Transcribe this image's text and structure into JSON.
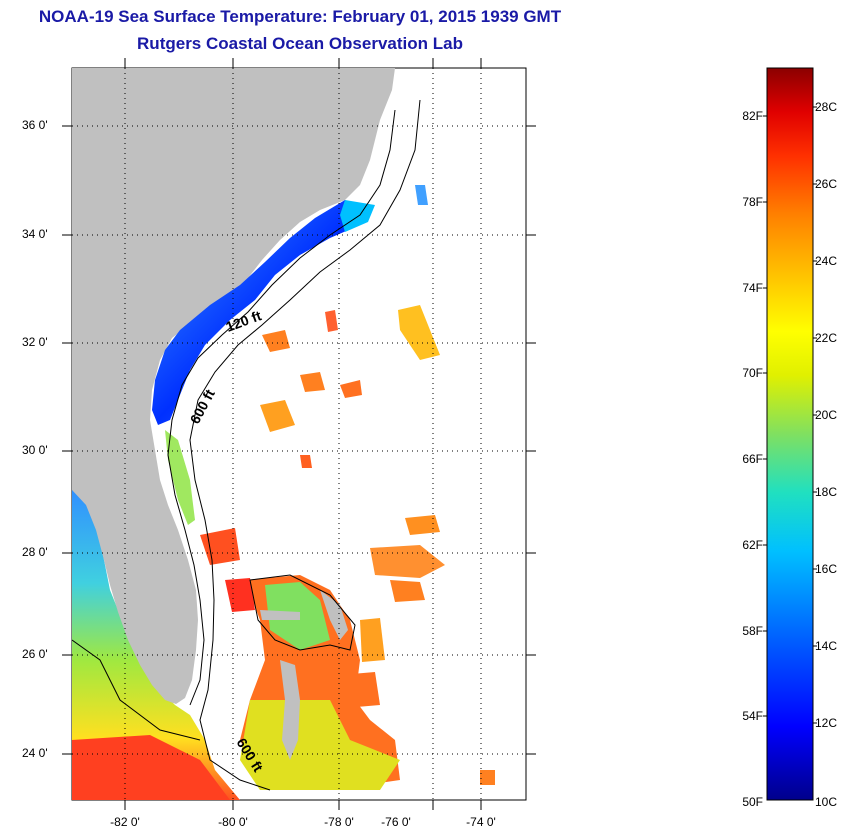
{
  "header": {
    "title": "NOAA-19 Sea Surface Temperature:  February 01, 2015 1939 GMT",
    "subtitle": "Rutgers Coastal Ocean Observation Lab"
  },
  "map": {
    "lat_labels": [
      "36 0'",
      "34 0'",
      "32 0'",
      "30 0'",
      "28 0'",
      "26 0'",
      "24 0'"
    ],
    "lon_labels": [
      "-82 0'",
      "-80 0'",
      "-78 0'",
      "-76 0'",
      "-74 0'"
    ],
    "lat_range": [
      23,
      37.2
    ],
    "lon_range": [
      -83,
      -72.5
    ],
    "grid": true,
    "depth_contours": [
      "120 ft",
      "600 ft",
      "600 ft"
    ],
    "land_color": "#c0c0c0",
    "ocean_background": "#ffffff"
  },
  "colorbar": {
    "fahrenheit_labels": [
      "82F",
      "78F",
      "74F",
      "70F",
      "66F",
      "62F",
      "58F",
      "54F",
      "50F"
    ],
    "celsius_labels": [
      "28C",
      "26C",
      "24C",
      "22C",
      "20C",
      "18C",
      "16C",
      "14C",
      "12C",
      "10C"
    ],
    "range_celsius": [
      10,
      29
    ],
    "colors": [
      "#00008b",
      "#0000ff",
      "#0060ff",
      "#00c0ff",
      "#20e0d0",
      "#60e080",
      "#c0f020",
      "#ffff00",
      "#ffc000",
      "#ff8000",
      "#ff4000",
      "#e00000",
      "#8b0000"
    ]
  }
}
